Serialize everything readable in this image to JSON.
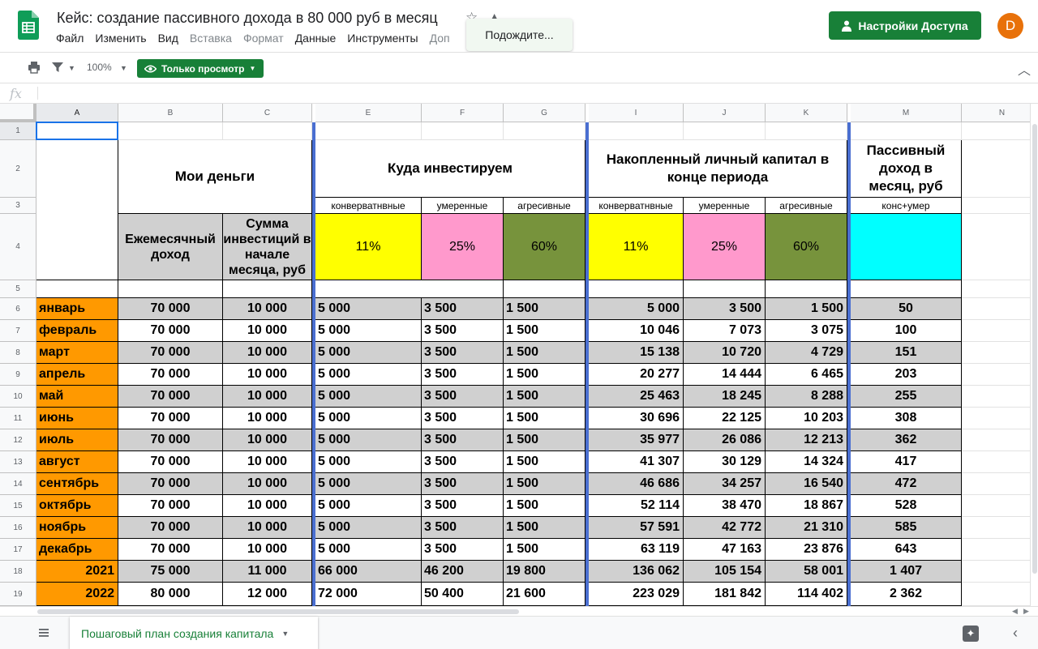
{
  "app": {
    "title": "Кейс: создание пассивного дохода в 80 000 руб в месяц",
    "menu": [
      "Файл",
      "Изменить",
      "Вид",
      "Вставка",
      "Формат",
      "Данные",
      "Инструменты",
      "Доп"
    ],
    "menu_dim": [
      false,
      false,
      false,
      true,
      true,
      false,
      false,
      true
    ],
    "toast": "Подождите...",
    "share_label": "Настройки Доступа",
    "avatar_letter": "D"
  },
  "toolbar": {
    "zoom": "100%",
    "view_mode": "Только просмотр"
  },
  "formula_bar": {
    "fx": "fx"
  },
  "columns": [
    "A",
    "B",
    "C",
    "",
    "E",
    "F",
    "G",
    "",
    "I",
    "J",
    "K",
    "",
    "M",
    "N"
  ],
  "rows": [
    "1",
    "2",
    "3",
    "4",
    "5",
    "6",
    "7",
    "8",
    "9",
    "10",
    "11",
    "12",
    "13",
    "14",
    "15",
    "16",
    "17",
    "18",
    "19"
  ],
  "headers": {
    "my_money": "Мои деньги",
    "invest": "Куда инвестируем",
    "capital": "Накопленный личный капитал в конце периода",
    "passive": "Пассивный доход в месяц, руб",
    "sub": [
      "конверватнвные",
      "умеренные",
      "агресивные",
      "конверватнвные",
      "умеренные",
      "агресивные",
      "конс+умер"
    ],
    "monthly_income": "Ежемесячный доход",
    "invest_sum": "Сумма инвестиций в начале месяца, руб",
    "pcts": [
      "11%",
      "25%",
      "60%",
      "11%",
      "25%",
      "60%"
    ]
  },
  "colors": {
    "orange": "#ff9900",
    "gray_band": "#d0d0d0",
    "yellow": "#ffff00",
    "pink": "#ff99cc",
    "olive": "#77933c",
    "cyan": "#00ffff",
    "brand_green": "#188038"
  },
  "table": [
    {
      "label": "январь",
      "b": "70 000",
      "c": "10 000",
      "e": "5 000",
      "f": "3 500",
      "g": "1 500",
      "i": "5 000",
      "j": "3 500",
      "k": "1 500",
      "m": "50"
    },
    {
      "label": "февраль",
      "b": "70 000",
      "c": "10 000",
      "e": "5 000",
      "f": "3 500",
      "g": "1 500",
      "i": "10 046",
      "j": "7 073",
      "k": "3 075",
      "m": "100"
    },
    {
      "label": "март",
      "b": "70 000",
      "c": "10 000",
      "e": "5 000",
      "f": "3 500",
      "g": "1 500",
      "i": "15 138",
      "j": "10 720",
      "k": "4 729",
      "m": "151"
    },
    {
      "label": "апрель",
      "b": "70 000",
      "c": "10 000",
      "e": "5 000",
      "f": "3 500",
      "g": "1 500",
      "i": "20 277",
      "j": "14 444",
      "k": "6 465",
      "m": "203"
    },
    {
      "label": "май",
      "b": "70 000",
      "c": "10 000",
      "e": "5 000",
      "f": "3 500",
      "g": "1 500",
      "i": "25 463",
      "j": "18 245",
      "k": "8 288",
      "m": "255"
    },
    {
      "label": "июнь",
      "b": "70 000",
      "c": "10 000",
      "e": "5 000",
      "f": "3 500",
      "g": "1 500",
      "i": "30 696",
      "j": "22 125",
      "k": "10 203",
      "m": "308"
    },
    {
      "label": "июль",
      "b": "70 000",
      "c": "10 000",
      "e": "5 000",
      "f": "3 500",
      "g": "1 500",
      "i": "35 977",
      "j": "26 086",
      "k": "12 213",
      "m": "362"
    },
    {
      "label": "август",
      "b": "70 000",
      "c": "10 000",
      "e": "5 000",
      "f": "3 500",
      "g": "1 500",
      "i": "41 307",
      "j": "30 129",
      "k": "14 324",
      "m": "417"
    },
    {
      "label": "сентябрь",
      "b": "70 000",
      "c": "10 000",
      "e": "5 000",
      "f": "3 500",
      "g": "1 500",
      "i": "46 686",
      "j": "34 257",
      "k": "16 540",
      "m": "472"
    },
    {
      "label": "октябрь",
      "b": "70 000",
      "c": "10 000",
      "e": "5 000",
      "f": "3 500",
      "g": "1 500",
      "i": "52 114",
      "j": "38 470",
      "k": "18 867",
      "m": "528"
    },
    {
      "label": "ноябрь",
      "b": "70 000",
      "c": "10 000",
      "e": "5 000",
      "f": "3 500",
      "g": "1 500",
      "i": "57 591",
      "j": "42 772",
      "k": "21 310",
      "m": "585"
    },
    {
      "label": "декабрь",
      "b": "70 000",
      "c": "10 000",
      "e": "5 000",
      "f": "3 500",
      "g": "1 500",
      "i": "63 119",
      "j": "47 163",
      "k": "23 876",
      "m": "643"
    },
    {
      "label": "2021",
      "b": "75 000",
      "c": "11 000",
      "e": "66 000",
      "f": "46 200",
      "g": "19 800",
      "i": "136 062",
      "j": "105 154",
      "k": "58 001",
      "m": "1 407"
    },
    {
      "label": "2022",
      "b": "80 000",
      "c": "12 000",
      "e": "72 000",
      "f": "50 400",
      "g": "21 600",
      "i": "223 029",
      "j": "181 842",
      "k": "114 402",
      "m": "2 362"
    }
  ],
  "sheet_tab": "Пошаговый план создания капитала"
}
